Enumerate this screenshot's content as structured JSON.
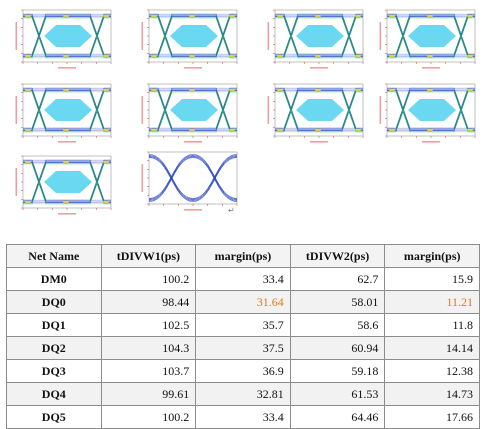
{
  "paragraph_mark": "↵",
  "eye_diagrams": [
    {
      "name": "eye-dq0"
    },
    {
      "name": "eye-dq1"
    },
    {
      "name": "eye-dq2"
    },
    {
      "name": "eye-dq3"
    },
    {
      "name": "eye-dq4"
    },
    {
      "name": "eye-dq5"
    },
    {
      "name": "eye-dq6"
    },
    {
      "name": "eye-dq7"
    },
    {
      "name": "eye-dm0"
    },
    {
      "name": "eye-dqs"
    }
  ],
  "table": {
    "headers": [
      "Net Name",
      "tDIVW1(ps)",
      "margin(ps)",
      "tDIVW2(ps)",
      "margin(ps)"
    ],
    "rows": [
      {
        "name": "DM0",
        "t1": "100.2",
        "m1": "33.4",
        "t2": "62.7",
        "m2": "15.9",
        "warn": false
      },
      {
        "name": "DQ0",
        "t1": "98.44",
        "m1": "31.64",
        "t2": "58.01",
        "m2": "11.21",
        "warn": true
      },
      {
        "name": "DQ1",
        "t1": "102.5",
        "m1": "35.7",
        "t2": "58.6",
        "m2": "11.8",
        "warn": false
      },
      {
        "name": "DQ2",
        "t1": "104.3",
        "m1": "37.5",
        "t2": "60.94",
        "m2": "14.14",
        "warn": false
      },
      {
        "name": "DQ3",
        "t1": "103.7",
        "m1": "36.9",
        "t2": "59.18",
        "m2": "12.38",
        "warn": false
      },
      {
        "name": "DQ4",
        "t1": "99.61",
        "m1": "32.81",
        "t2": "61.53",
        "m2": "14.73",
        "warn": false
      },
      {
        "name": "DQ5",
        "t1": "100.2",
        "m1": "33.4",
        "t2": "64.46",
        "m2": "17.66",
        "warn": false
      }
    ]
  },
  "colors": {
    "warn": "#e07b16",
    "eye_blue": "#1f3fbf",
    "eye_green": "#2fbf5a",
    "eye_cyan": "#5ad4f0"
  }
}
